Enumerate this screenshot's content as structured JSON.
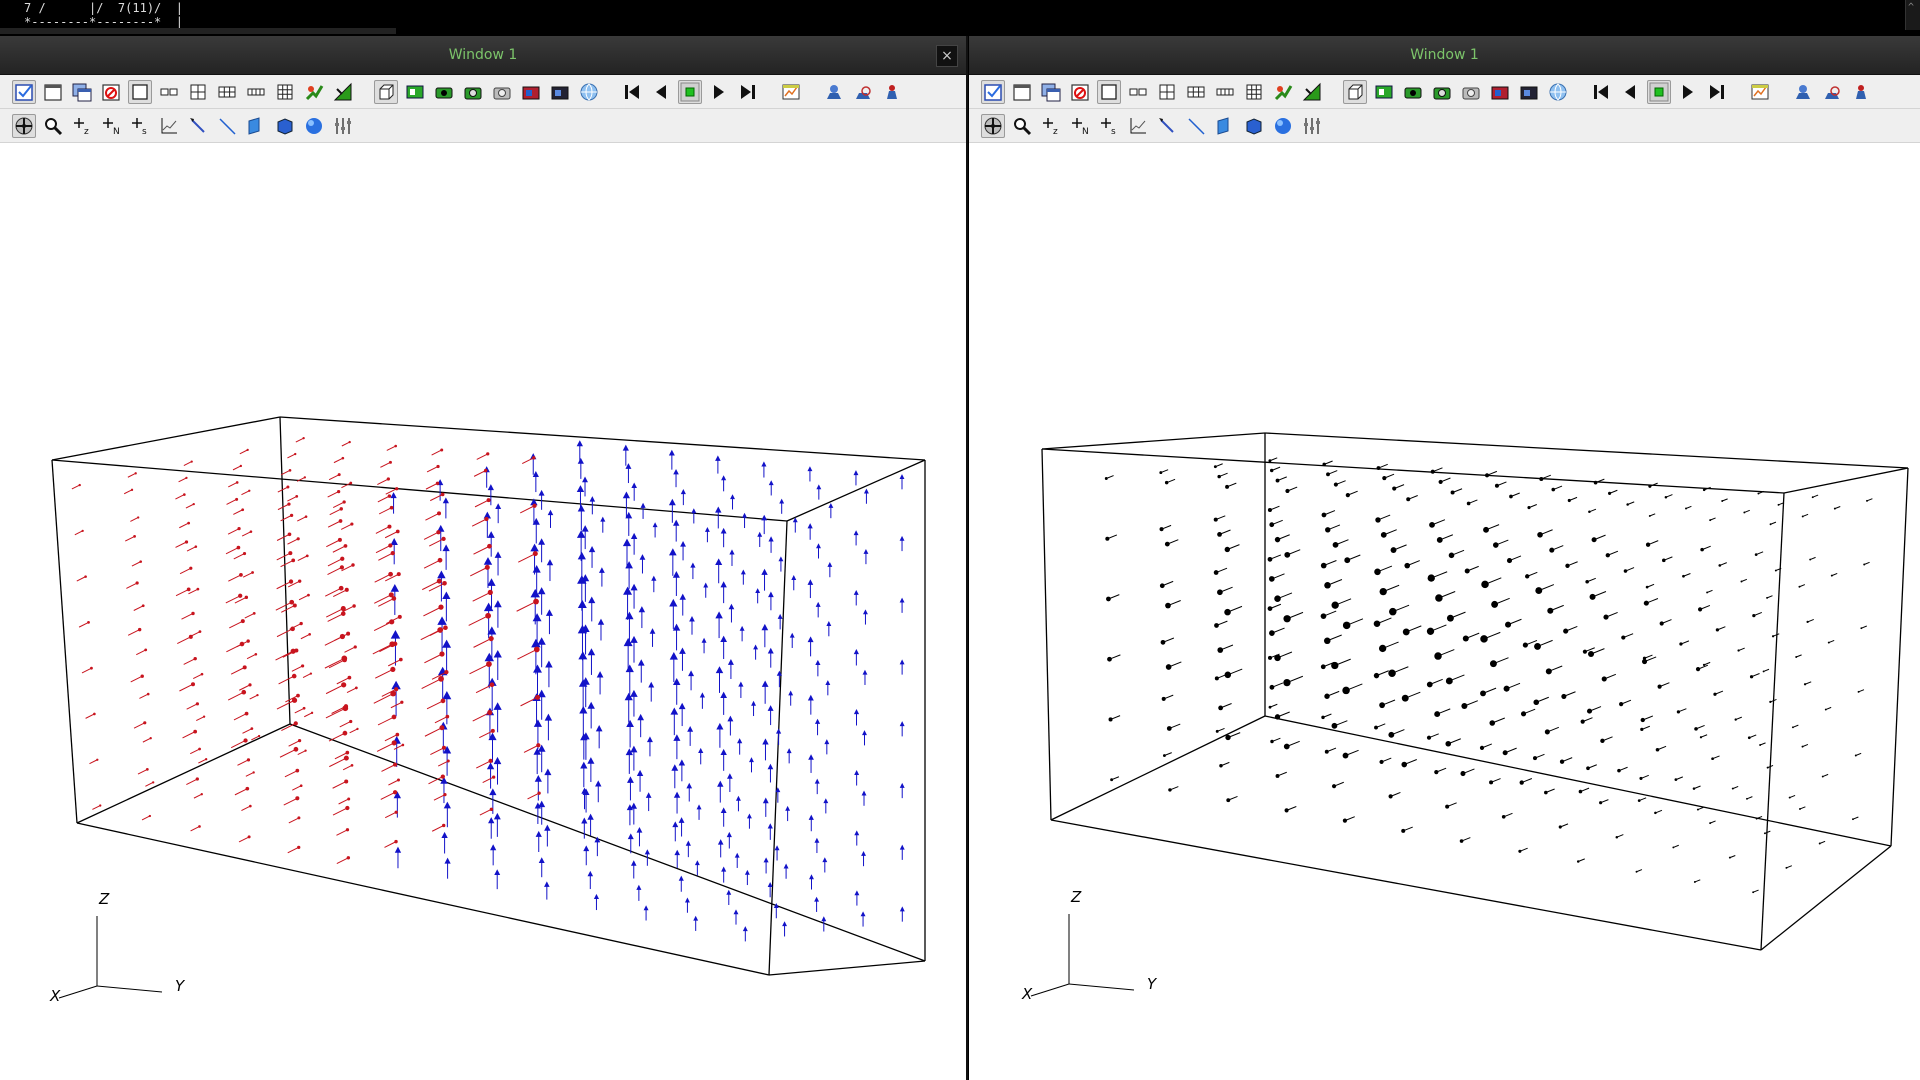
{
  "terminal": {
    "lines": [
      "7 /      |/  7(11)/  |",
      "*--------*--------*  |"
    ],
    "scroll_icon": "^"
  },
  "windows": [
    {
      "title": "Window 1",
      "close_label": "×",
      "axes": {
        "z": "Z",
        "y": "Y",
        "x": "X"
      }
    },
    {
      "title": "Window 1",
      "axes": {
        "z": "Z",
        "y": "Y",
        "x": "X"
      }
    }
  ],
  "toolbar_row1_icons": [
    "active-window-icon",
    "new-window-icon",
    "copy-window-icon",
    "delete-window-icon",
    "layout-1x1-icon",
    "layout-1x2-icon",
    "layout-2x2-icon",
    "layout-2x3-icon",
    "layout-1x4-icon",
    "layout-3x3-icon",
    "lock-view-icon",
    "spin-copy-icon",
    "separator",
    "view-3d-icon",
    "animate-icon",
    "save-movie-icon",
    "camera-icon",
    "camera-gray-icon",
    "keyframe-icon",
    "keyframe-dark-icon",
    "globe-icon",
    "separator",
    "rewind-icon",
    "step-back-icon",
    "stop-icon",
    "play-icon",
    "step-forward-icon",
    "separator",
    "lineout-icon",
    "separator",
    "undo-icon",
    "redo-icon",
    "clear-icon"
  ],
  "toolbar_row2_icons": [
    "navigate-icon",
    "zoom-icon",
    "zone-pick-icon",
    "node-pick-icon",
    "spreadsheet-pick-icon",
    "line-plot-icon",
    "probe-icon",
    "line-icon",
    "plane-icon",
    "box-icon",
    "sphere-icon",
    "slider-icon"
  ],
  "colors": {
    "vector_red": "#c8141e",
    "vector_blue": "#1212c8",
    "vector_black": "#000000",
    "title_green": "#7cc46a",
    "box_line": "#000000"
  }
}
